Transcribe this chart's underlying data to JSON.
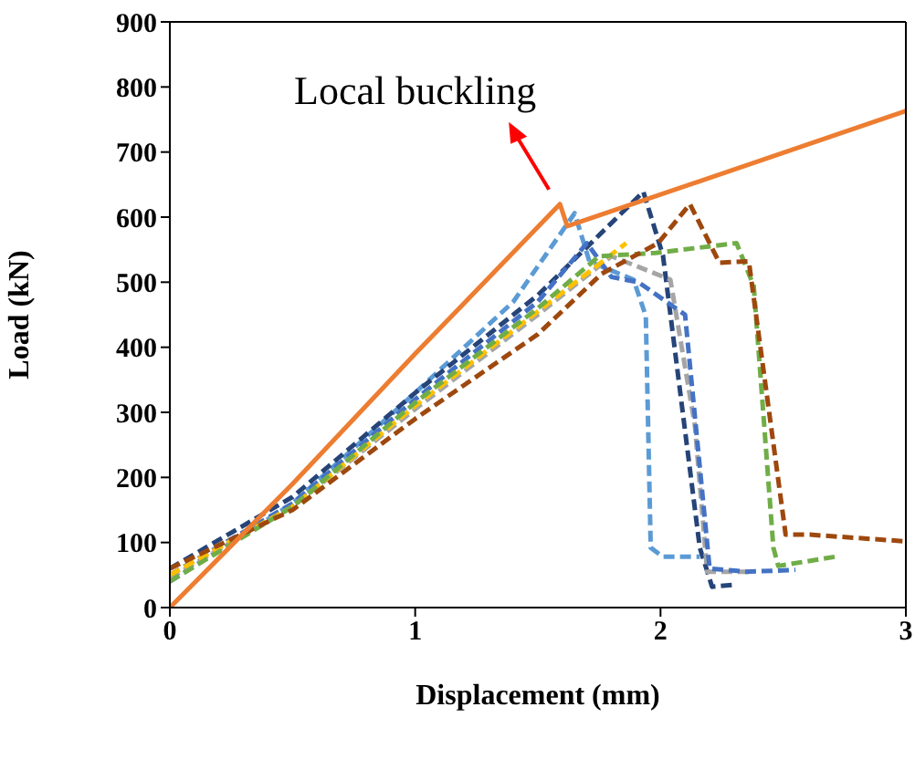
{
  "chart_data": {
    "type": "line",
    "xlabel": "Displacement (mm)",
    "ylabel": "Load (kN)",
    "annotations": [
      {
        "text": "Local buckling",
        "x": 1.59,
        "y": 620
      }
    ],
    "xlim": [
      0,
      3
    ],
    "xticks": [
      0,
      1,
      2,
      3
    ],
    "ylim": [
      0,
      900
    ],
    "yticks": [
      0,
      100,
      200,
      300,
      400,
      500,
      600,
      700,
      800,
      900
    ],
    "marker": "none",
    "series": [
      {
        "color": "#5b9bd5",
        "line_style": "dashed",
        "x": [
          0,
          0.5,
          1,
          1.4,
          1.65,
          1.71,
          1.89,
          1.94,
          1.96,
          2.01,
          2.16
        ],
        "values": [
          40,
          160,
          330,
          470,
          606,
          532,
          504,
          448,
          92,
          78,
          78
        ]
      },
      {
        "color": "#264478",
        "line_style": "dashed",
        "x": [
          0,
          0.5,
          1,
          1.5,
          1.93,
          2.01,
          2.16,
          2.21,
          2.3
        ],
        "values": [
          60,
          170,
          330,
          480,
          639,
          541,
          92,
          32,
          35
        ]
      },
      {
        "color": "#a5a5a5",
        "line_style": "dashed",
        "x": [
          0,
          0.5,
          1,
          1.5,
          1.8,
          2.04,
          2.14,
          2.19,
          2.36
        ],
        "values": [
          45,
          155,
          305,
          450,
          540,
          504,
          280,
          55,
          55
        ]
      },
      {
        "color": "#4472c4",
        "line_style": "dashed",
        "x": [
          0,
          0.5,
          1,
          1.5,
          1.7,
          1.8,
          1.91,
          2.1,
          2.2,
          2.35,
          2.55
        ],
        "values": [
          50,
          160,
          320,
          470,
          560,
          508,
          500,
          450,
          60,
          55,
          58
        ]
      },
      {
        "color": "#ffc000",
        "line_style": "dashed",
        "x": [
          0,
          0.5,
          1,
          1.5,
          1.86
        ],
        "values": [
          50,
          155,
          310,
          455,
          560
        ]
      },
      {
        "color": "#70ad47",
        "line_style": "dashed",
        "x": [
          0,
          0.5,
          1,
          1.5,
          1.75,
          1.98,
          2.31,
          2.38,
          2.46,
          2.48,
          2.71
        ],
        "values": [
          40,
          155,
          315,
          460,
          540,
          545,
          560,
          494,
          92,
          64,
          78
        ]
      },
      {
        "color": "#9e480e",
        "line_style": "dashed",
        "x": [
          0,
          0.5,
          1,
          1.5,
          1.76,
          1.99,
          2.12,
          2.24,
          2.36,
          2.51,
          2.61,
          2.99
        ],
        "values": [
          60,
          150,
          290,
          420,
          513,
          560,
          620,
          530,
          532,
          112,
          112,
          102
        ]
      },
      {
        "color": "#ed7d31",
        "line_style": "solid",
        "x": [
          0,
          0.5,
          1,
          1.59,
          1.62,
          3
        ],
        "values": [
          0,
          190,
          390,
          620,
          586,
          763
        ]
      }
    ]
  }
}
